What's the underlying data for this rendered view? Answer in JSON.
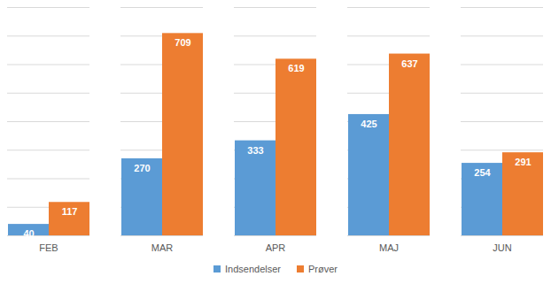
{
  "chart_data": {
    "type": "bar",
    "categories": [
      "FEB",
      "MAR",
      "APR",
      "MAJ",
      "JUN"
    ],
    "series": [
      {
        "name": "Indsendelser",
        "color": "#5b9bd5",
        "values": [
          40,
          270,
          333,
          425,
          254
        ]
      },
      {
        "name": "Prøver",
        "color": "#ed7d31",
        "values": [
          117,
          709,
          619,
          637,
          291
        ]
      }
    ],
    "ylim": [
      0,
      800
    ],
    "yticks": [
      0,
      100,
      200,
      300,
      400,
      500,
      600,
      700,
      800
    ],
    "grid": true,
    "legend": "bottom",
    "data_labels": true,
    "tick_labels": "x"
  }
}
